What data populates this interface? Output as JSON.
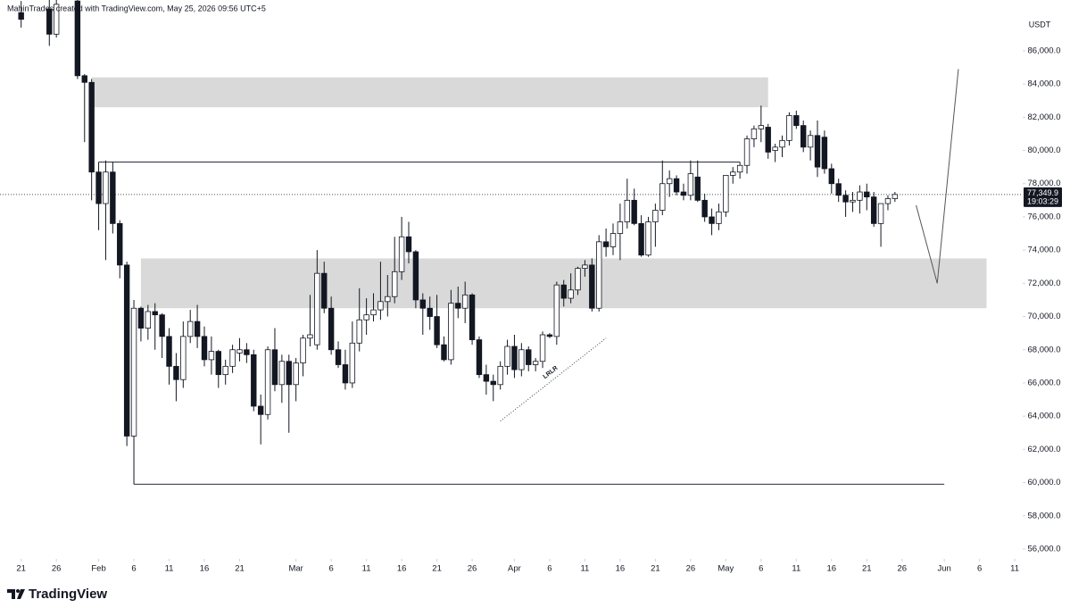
{
  "chart_data": {
    "type": "candlestick",
    "attribution": "MahinTrades created with TradingView.com, May 25, 2026 09:56 UTC+5",
    "currency": "USDT",
    "brand": "TradingView",
    "up_color": "#ffffff",
    "down_color": "#131722",
    "xlim": [
      "01-18",
      "06-12"
    ],
    "ylim": [
      55460,
      89060
    ],
    "xticks": [
      {
        "value": "01-21",
        "label": "21"
      },
      {
        "value": "01-26",
        "label": "26"
      },
      {
        "value": "02-01",
        "label": "Feb"
      },
      {
        "value": "02-06",
        "label": "6"
      },
      {
        "value": "02-11",
        "label": "11"
      },
      {
        "value": "02-16",
        "label": "16"
      },
      {
        "value": "02-21",
        "label": "21"
      },
      {
        "value": "03-01",
        "label": "Mar"
      },
      {
        "value": "03-06",
        "label": "6"
      },
      {
        "value": "03-11",
        "label": "11"
      },
      {
        "value": "03-16",
        "label": "16"
      },
      {
        "value": "03-21",
        "label": "21"
      },
      {
        "value": "03-26",
        "label": "26"
      },
      {
        "value": "04-01",
        "label": "Apr"
      },
      {
        "value": "04-06",
        "label": "6"
      },
      {
        "value": "04-11",
        "label": "11"
      },
      {
        "value": "04-16",
        "label": "16"
      },
      {
        "value": "04-21",
        "label": "21"
      },
      {
        "value": "04-26",
        "label": "26"
      },
      {
        "value": "05-01",
        "label": "May"
      },
      {
        "value": "05-06",
        "label": "6"
      },
      {
        "value": "05-11",
        "label": "11"
      },
      {
        "value": "05-16",
        "label": "16"
      },
      {
        "value": "05-21",
        "label": "21"
      },
      {
        "value": "05-26",
        "label": "26"
      },
      {
        "value": "06-01",
        "label": "Jun"
      },
      {
        "value": "06-06",
        "label": "6"
      },
      {
        "value": "06-11",
        "label": "11"
      }
    ],
    "yticks": [
      {
        "value": 56000,
        "label": "56,000.0"
      },
      {
        "value": 58000,
        "label": "58,000.0"
      },
      {
        "value": 60000,
        "label": "60,000.0"
      },
      {
        "value": 62000,
        "label": "62,000.0"
      },
      {
        "value": 64000,
        "label": "64,000.0"
      },
      {
        "value": 66000,
        "label": "66,000.0"
      },
      {
        "value": 68000,
        "label": "68,000.0"
      },
      {
        "value": 70000,
        "label": "70,000.0"
      },
      {
        "value": 72000,
        "label": "72,000.0"
      },
      {
        "value": 74000,
        "label": "74,000.0"
      },
      {
        "value": 76000,
        "label": "76,000.0"
      },
      {
        "value": 78000,
        "label": "78,000.0"
      },
      {
        "value": 80000,
        "label": "80,000.0"
      },
      {
        "value": 82000,
        "label": "82,000.0"
      },
      {
        "value": 84000,
        "label": "84,000.0"
      },
      {
        "value": 86000,
        "label": "86,000.0"
      }
    ],
    "last_price": {
      "value": 77349.9,
      "label": "77,349.9"
    },
    "countdown": "19:03:29",
    "zones": [
      {
        "top": 84400,
        "bottom": 82600,
        "from": "01-31",
        "to": "05-07"
      },
      {
        "top": 73500,
        "bottom": 70500,
        "from": "02-07",
        "to": "06-07"
      }
    ],
    "levels": [
      {
        "value": 79300,
        "from": "02-01",
        "to": "05-03"
      },
      {
        "value": 59900,
        "from": "02-06",
        "to": "06-01"
      }
    ],
    "projection": {
      "x": [
        "05-28",
        "05-31",
        "06-03"
      ],
      "values": [
        76700,
        72000,
        84900
      ]
    },
    "trendline": {
      "label": "LRLR",
      "x": [
        "03-30",
        "04-14"
      ],
      "values": [
        63700,
        68700
      ]
    },
    "candles": [
      {
        "x": "01-21",
        "open": 88300,
        "high": 89000,
        "low": 87400,
        "close": 87900
      },
      {
        "x": "01-25",
        "open": 88500,
        "high": 89200,
        "low": 86300,
        "close": 87000
      },
      {
        "x": "01-26",
        "open": 87000,
        "high": 89200,
        "low": 86800,
        "close": 88800
      },
      {
        "x": "01-29",
        "open": 89000,
        "high": 89500,
        "low": 84300,
        "close": 84500
      },
      {
        "x": "01-30",
        "open": 84500,
        "high": 84600,
        "low": 80500,
        "close": 84100
      },
      {
        "x": "01-31",
        "open": 84100,
        "high": 84300,
        "low": 77000,
        "close": 78700
      },
      {
        "x": "02-01",
        "open": 78700,
        "high": 79300,
        "low": 75200,
        "close": 76800
      },
      {
        "x": "02-02",
        "open": 76800,
        "high": 79400,
        "low": 73400,
        "close": 78700
      },
      {
        "x": "02-03",
        "open": 78700,
        "high": 79300,
        "low": 75000,
        "close": 75600
      },
      {
        "x": "02-04",
        "open": 75600,
        "high": 75800,
        "low": 72300,
        "close": 73100
      },
      {
        "x": "02-05",
        "open": 73100,
        "high": 73300,
        "low": 62200,
        "close": 62800
      },
      {
        "x": "02-06",
        "open": 62800,
        "high": 71000,
        "low": 59900,
        "close": 70500
      },
      {
        "x": "02-07",
        "open": 70500,
        "high": 70600,
        "low": 68500,
        "close": 69300
      },
      {
        "x": "02-08",
        "open": 69300,
        "high": 70700,
        "low": 68600,
        "close": 70300
      },
      {
        "x": "02-09",
        "open": 70300,
        "high": 70800,
        "low": 68000,
        "close": 70100
      },
      {
        "x": "02-10",
        "open": 70100,
        "high": 70200,
        "low": 67500,
        "close": 68800
      },
      {
        "x": "02-11",
        "open": 68800,
        "high": 69300,
        "low": 65900,
        "close": 67000
      },
      {
        "x": "02-12",
        "open": 67000,
        "high": 67800,
        "low": 64900,
        "close": 66200
      },
      {
        "x": "02-13",
        "open": 66200,
        "high": 69700,
        "low": 65700,
        "close": 68800
      },
      {
        "x": "02-14",
        "open": 68800,
        "high": 70400,
        "low": 68400,
        "close": 69700
      },
      {
        "x": "02-15",
        "open": 69700,
        "high": 70700,
        "low": 68100,
        "close": 68800
      },
      {
        "x": "02-16",
        "open": 68800,
        "high": 69400,
        "low": 67000,
        "close": 67400
      },
      {
        "x": "02-17",
        "open": 67400,
        "high": 68800,
        "low": 66500,
        "close": 67900
      },
      {
        "x": "02-18",
        "open": 67900,
        "high": 68000,
        "low": 65700,
        "close": 66500
      },
      {
        "x": "02-19",
        "open": 66500,
        "high": 67400,
        "low": 65900,
        "close": 67000
      },
      {
        "x": "02-20",
        "open": 67000,
        "high": 68300,
        "low": 66600,
        "close": 68000
      },
      {
        "x": "02-21",
        "open": 67800,
        "high": 68700,
        "low": 67300,
        "close": 68000
      },
      {
        "x": "02-22",
        "open": 68000,
        "high": 68400,
        "low": 67200,
        "close": 67700
      },
      {
        "x": "02-23",
        "open": 67700,
        "high": 68000,
        "low": 64300,
        "close": 64600
      },
      {
        "x": "02-24",
        "open": 64600,
        "high": 65300,
        "low": 62300,
        "close": 64100
      },
      {
        "x": "02-25",
        "open": 64100,
        "high": 68200,
        "low": 63800,
        "close": 68000
      },
      {
        "x": "02-26",
        "open": 68000,
        "high": 69300,
        "low": 65500,
        "close": 65900
      },
      {
        "x": "02-27",
        "open": 65900,
        "high": 67700,
        "low": 64800,
        "close": 67300
      },
      {
        "x": "02-28",
        "open": 67300,
        "high": 67700,
        "low": 63000,
        "close": 65900
      },
      {
        "x": "03-01",
        "open": 65900,
        "high": 67500,
        "low": 64900,
        "close": 67200
      },
      {
        "x": "03-02",
        "open": 67200,
        "high": 68900,
        "low": 66400,
        "close": 68700
      },
      {
        "x": "03-03",
        "open": 68700,
        "high": 71300,
        "low": 68200,
        "close": 68900
      },
      {
        "x": "03-04",
        "open": 68300,
        "high": 74000,
        "low": 68000,
        "close": 72600
      },
      {
        "x": "03-05",
        "open": 72600,
        "high": 73300,
        "low": 70200,
        "close": 70500
      },
      {
        "x": "03-06",
        "open": 70500,
        "high": 71200,
        "low": 67700,
        "close": 68000
      },
      {
        "x": "03-07",
        "open": 68000,
        "high": 68500,
        "low": 66900,
        "close": 67100
      },
      {
        "x": "03-08",
        "open": 67100,
        "high": 68000,
        "low": 65600,
        "close": 66000
      },
      {
        "x": "03-09",
        "open": 66000,
        "high": 69700,
        "low": 65700,
        "close": 68400
      },
      {
        "x": "03-10",
        "open": 68400,
        "high": 71700,
        "low": 67900,
        "close": 69800
      },
      {
        "x": "03-11",
        "open": 69800,
        "high": 71100,
        "low": 68900,
        "close": 70100
      },
      {
        "x": "03-12",
        "open": 70100,
        "high": 71400,
        "low": 69700,
        "close": 70400
      },
      {
        "x": "03-13",
        "open": 70400,
        "high": 73300,
        "low": 69800,
        "close": 70900
      },
      {
        "x": "03-14",
        "open": 70900,
        "high": 72500,
        "low": 70000,
        "close": 71200
      },
      {
        "x": "03-15",
        "open": 71200,
        "high": 74800,
        "low": 70800,
        "close": 72700
      },
      {
        "x": "03-16",
        "open": 72700,
        "high": 76000,
        "low": 72200,
        "close": 74800
      },
      {
        "x": "03-17",
        "open": 74800,
        "high": 75700,
        "low": 73200,
        "close": 73900
      },
      {
        "x": "03-18",
        "open": 73900,
        "high": 74000,
        "low": 70500,
        "close": 71000
      },
      {
        "x": "03-19",
        "open": 71000,
        "high": 71400,
        "low": 68900,
        "close": 70500
      },
      {
        "x": "03-20",
        "open": 70500,
        "high": 71200,
        "low": 69200,
        "close": 70000
      },
      {
        "x": "03-21",
        "open": 70000,
        "high": 71300,
        "low": 68100,
        "close": 68300
      },
      {
        "x": "03-22",
        "open": 68300,
        "high": 68800,
        "low": 67300,
        "close": 67400
      },
      {
        "x": "03-23",
        "open": 67400,
        "high": 71600,
        "low": 67100,
        "close": 70800
      },
      {
        "x": "03-24",
        "open": 70800,
        "high": 71800,
        "low": 69900,
        "close": 70500
      },
      {
        "x": "03-25",
        "open": 70500,
        "high": 72100,
        "low": 69600,
        "close": 71300
      },
      {
        "x": "03-26",
        "open": 71300,
        "high": 71400,
        "low": 68300,
        "close": 68600
      },
      {
        "x": "03-27",
        "open": 68600,
        "high": 68800,
        "low": 66300,
        "close": 66500
      },
      {
        "x": "03-28",
        "open": 66500,
        "high": 67100,
        "low": 65300,
        "close": 66100
      },
      {
        "x": "03-29",
        "open": 66100,
        "high": 66500,
        "low": 64900,
        "close": 65900
      },
      {
        "x": "03-30",
        "open": 65900,
        "high": 67300,
        "low": 65600,
        "close": 67000
      },
      {
        "x": "03-31",
        "open": 67000,
        "high": 68600,
        "low": 66500,
        "close": 68200
      },
      {
        "x": "04-01",
        "open": 68200,
        "high": 68900,
        "low": 66300,
        "close": 66800
      },
      {
        "x": "04-02",
        "open": 66800,
        "high": 68400,
        "low": 66400,
        "close": 68000
      },
      {
        "x": "04-03",
        "open": 68000,
        "high": 68200,
        "low": 66700,
        "close": 67100
      },
      {
        "x": "04-04",
        "open": 67100,
        "high": 67500,
        "low": 66700,
        "close": 67300
      },
      {
        "x": "04-05",
        "open": 67300,
        "high": 69100,
        "low": 66900,
        "close": 68900
      },
      {
        "x": "04-06",
        "open": 68900,
        "high": 69000,
        "low": 68700,
        "close": 68800
      },
      {
        "x": "04-07",
        "open": 68800,
        "high": 72100,
        "low": 68300,
        "close": 71900
      },
      {
        "x": "04-08",
        "open": 71900,
        "high": 72200,
        "low": 70600,
        "close": 71100
      },
      {
        "x": "04-09",
        "open": 71100,
        "high": 72600,
        "low": 70800,
        "close": 71600
      },
      {
        "x": "04-10",
        "open": 71600,
        "high": 73000,
        "low": 71300,
        "close": 72900
      },
      {
        "x": "04-11",
        "open": 72900,
        "high": 73400,
        "low": 72400,
        "close": 73100
      },
      {
        "x": "04-12",
        "open": 73100,
        "high": 73500,
        "low": 70300,
        "close": 70500
      },
      {
        "x": "04-13",
        "open": 70500,
        "high": 74900,
        "low": 70300,
        "close": 74500
      },
      {
        "x": "04-14",
        "open": 74500,
        "high": 75300,
        "low": 73600,
        "close": 74200
      },
      {
        "x": "04-15",
        "open": 74200,
        "high": 75600,
        "low": 73700,
        "close": 75000
      },
      {
        "x": "04-16",
        "open": 75000,
        "high": 76800,
        "low": 73400,
        "close": 75700
      },
      {
        "x": "04-17",
        "open": 75700,
        "high": 78300,
        "low": 75300,
        "close": 77000
      },
      {
        "x": "04-18",
        "open": 77000,
        "high": 77700,
        "low": 75500,
        "close": 75600
      },
      {
        "x": "04-19",
        "open": 75600,
        "high": 76100,
        "low": 73600,
        "close": 73700
      },
      {
        "x": "04-20",
        "open": 73700,
        "high": 76000,
        "low": 73600,
        "close": 75700
      },
      {
        "x": "04-21",
        "open": 75700,
        "high": 76800,
        "low": 74200,
        "close": 76400
      },
      {
        "x": "04-22",
        "open": 76400,
        "high": 79400,
        "low": 76100,
        "close": 78000
      },
      {
        "x": "04-23",
        "open": 78000,
        "high": 78800,
        "low": 77200,
        "close": 78300
      },
      {
        "x": "04-24",
        "open": 78300,
        "high": 78500,
        "low": 77300,
        "close": 77500
      },
      {
        "x": "04-25",
        "open": 77500,
        "high": 78000,
        "low": 77000,
        "close": 77300
      },
      {
        "x": "04-26",
        "open": 77300,
        "high": 79400,
        "low": 77000,
        "close": 78600
      },
      {
        "x": "04-27",
        "open": 78400,
        "high": 79400,
        "low": 76900,
        "close": 77000
      },
      {
        "x": "04-28",
        "open": 77000,
        "high": 77400,
        "low": 75700,
        "close": 76000
      },
      {
        "x": "04-29",
        "open": 76000,
        "high": 76500,
        "low": 74900,
        "close": 75600
      },
      {
        "x": "04-30",
        "open": 75600,
        "high": 76800,
        "low": 75200,
        "close": 76300
      },
      {
        "x": "05-01",
        "open": 76300,
        "high": 78500,
        "low": 76000,
        "close": 78500
      },
      {
        "x": "05-02",
        "open": 78500,
        "high": 79000,
        "low": 78000,
        "close": 78700
      },
      {
        "x": "05-03",
        "open": 78700,
        "high": 79300,
        "low": 78300,
        "close": 79100
      },
      {
        "x": "05-04",
        "open": 79100,
        "high": 80900,
        "low": 78600,
        "close": 80700
      },
      {
        "x": "05-05",
        "open": 80700,
        "high": 81500,
        "low": 80200,
        "close": 81300
      },
      {
        "x": "05-06",
        "open": 81300,
        "high": 82700,
        "low": 80500,
        "close": 81500
      },
      {
        "x": "05-07",
        "open": 81400,
        "high": 81600,
        "low": 79500,
        "close": 79900
      },
      {
        "x": "05-08",
        "open": 80000,
        "high": 80400,
        "low": 79300,
        "close": 80200
      },
      {
        "x": "05-09",
        "open": 80200,
        "high": 80900,
        "low": 79600,
        "close": 80600
      },
      {
        "x": "05-10",
        "open": 80600,
        "high": 82300,
        "low": 80300,
        "close": 82100
      },
      {
        "x": "05-11",
        "open": 82100,
        "high": 82400,
        "low": 81300,
        "close": 81500
      },
      {
        "x": "05-12",
        "open": 81500,
        "high": 81800,
        "low": 79900,
        "close": 80200
      },
      {
        "x": "05-13",
        "open": 80200,
        "high": 81200,
        "low": 79400,
        "close": 80900
      },
      {
        "x": "05-14",
        "open": 80900,
        "high": 81800,
        "low": 78400,
        "close": 79000
      },
      {
        "x": "05-15",
        "open": 80800,
        "high": 81200,
        "low": 78600,
        "close": 78900
      },
      {
        "x": "05-16",
        "open": 78900,
        "high": 79200,
        "low": 77400,
        "close": 78000
      },
      {
        "x": "05-17",
        "open": 78000,
        "high": 78300,
        "low": 76900,
        "close": 77300
      },
      {
        "x": "05-18",
        "open": 77300,
        "high": 77600,
        "low": 76000,
        "close": 76900
      },
      {
        "x": "05-19",
        "open": 76900,
        "high": 77500,
        "low": 76300,
        "close": 77000
      },
      {
        "x": "05-20",
        "open": 77000,
        "high": 77900,
        "low": 76200,
        "close": 77500
      },
      {
        "x": "05-21",
        "open": 77500,
        "high": 78000,
        "low": 76400,
        "close": 77200
      },
      {
        "x": "05-22",
        "open": 77200,
        "high": 77500,
        "low": 75400,
        "close": 75600
      },
      {
        "x": "05-23",
        "open": 75600,
        "high": 76800,
        "low": 74200,
        "close": 76800
      },
      {
        "x": "05-24",
        "open": 76800,
        "high": 77300,
        "low": 76400,
        "close": 77100
      },
      {
        "x": "05-25",
        "open": 77100,
        "high": 77500,
        "low": 76900,
        "close": 77349.9
      }
    ]
  }
}
